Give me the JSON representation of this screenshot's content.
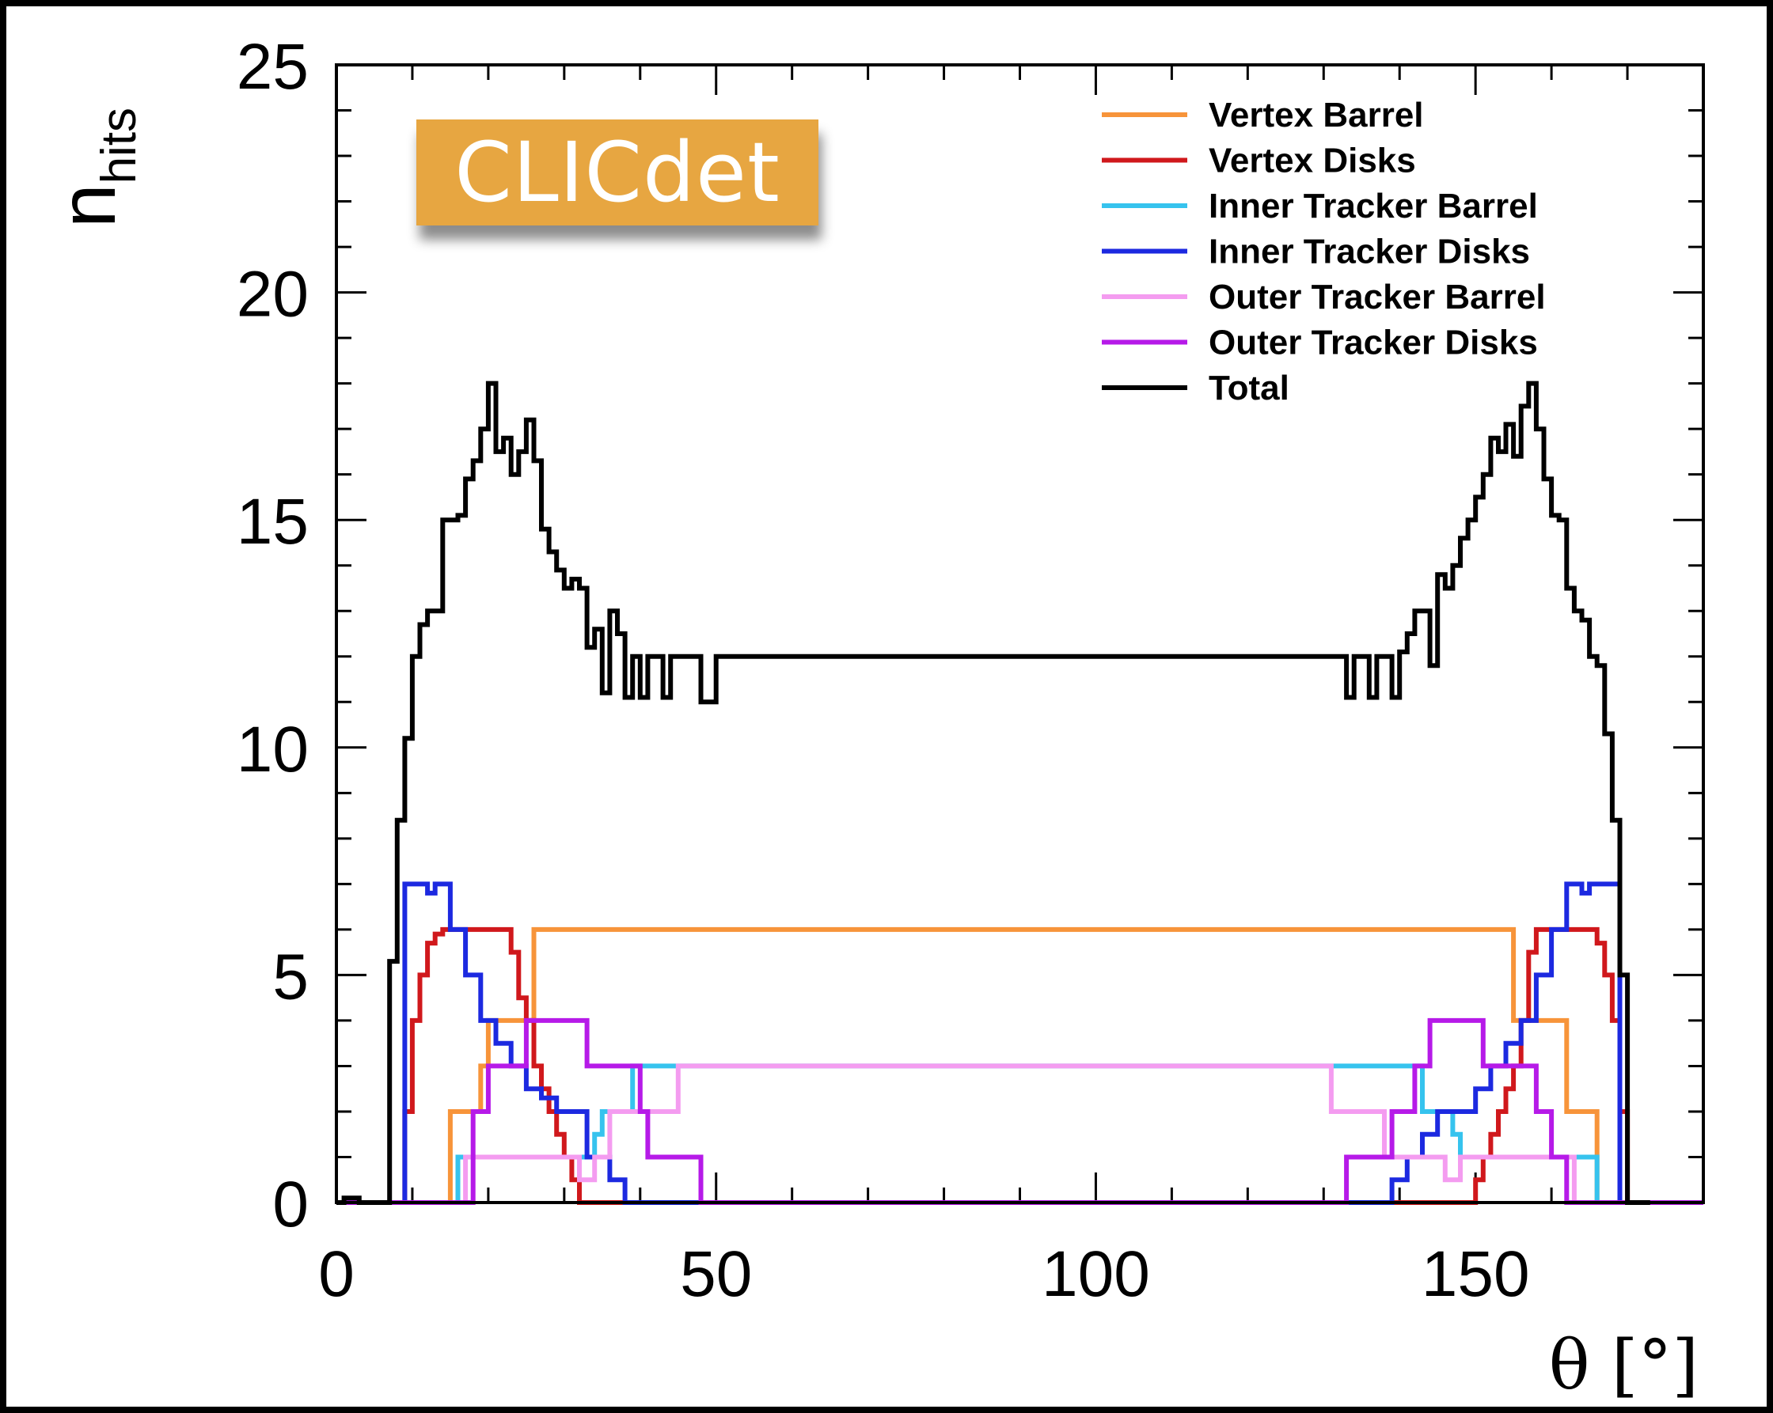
{
  "badge": "CLICdet",
  "chart_data": {
    "type": "line",
    "step": true,
    "xlabel": "θ [°]",
    "ylabel": {
      "base": "n",
      "sub": "hits"
    },
    "xlim": [
      0,
      180
    ],
    "ylim": [
      0,
      25
    ],
    "xticks": [
      0,
      50,
      100,
      150
    ],
    "yticks": [
      0,
      5,
      10,
      15,
      20,
      25
    ],
    "legend_position": "top-right",
    "series": [
      {
        "name": "Vertex Barrel",
        "color": "#f7943a",
        "points": [
          [
            0,
            0
          ],
          [
            14,
            0
          ],
          [
            15,
            2
          ],
          [
            18,
            2
          ],
          [
            19,
            3
          ],
          [
            20,
            4
          ],
          [
            25,
            4
          ],
          [
            26,
            6
          ],
          [
            154,
            6
          ],
          [
            155,
            4
          ],
          [
            161,
            4
          ],
          [
            162,
            3
          ],
          [
            162,
            2
          ],
          [
            165,
            2
          ],
          [
            166,
            0
          ],
          [
            180,
            0
          ]
        ]
      },
      {
        "name": "Vertex Disks",
        "color": "#d0181c",
        "points": [
          [
            0,
            0
          ],
          [
            8,
            0
          ],
          [
            9,
            2
          ],
          [
            10,
            4
          ],
          [
            11,
            5
          ],
          [
            12,
            5.7
          ],
          [
            13,
            5.9
          ],
          [
            14,
            6
          ],
          [
            22,
            6
          ],
          [
            23,
            5.5
          ],
          [
            24,
            4.5
          ],
          [
            25,
            4
          ],
          [
            26,
            3
          ],
          [
            27,
            2.5
          ],
          [
            28,
            2
          ],
          [
            29,
            1.5
          ],
          [
            30,
            1
          ],
          [
            31,
            0.5
          ],
          [
            32,
            0
          ],
          [
            149,
            0
          ],
          [
            150,
            0.5
          ],
          [
            151,
            1
          ],
          [
            152,
            1.5
          ],
          [
            153,
            2
          ],
          [
            154,
            2.5
          ],
          [
            155,
            3
          ],
          [
            156,
            4
          ],
          [
            157,
            5.5
          ],
          [
            158,
            6
          ],
          [
            165,
            6
          ],
          [
            166,
            5.7
          ],
          [
            167,
            5
          ],
          [
            168,
            4
          ],
          [
            169,
            2
          ],
          [
            170,
            0
          ],
          [
            180,
            0
          ]
        ]
      },
      {
        "name": "Inner Tracker Barrel",
        "color": "#36c3ee",
        "points": [
          [
            0,
            0
          ],
          [
            15,
            0
          ],
          [
            16,
            1
          ],
          [
            33,
            1
          ],
          [
            34,
            1.5
          ],
          [
            35,
            2
          ],
          [
            38,
            2
          ],
          [
            39,
            3
          ],
          [
            142,
            3
          ],
          [
            143,
            2
          ],
          [
            146,
            2
          ],
          [
            147,
            1.5
          ],
          [
            148,
            1
          ],
          [
            165,
            1
          ],
          [
            166,
            0
          ],
          [
            180,
            0
          ]
        ]
      },
      {
        "name": "Inner Tracker Disks",
        "color": "#1c29e0",
        "points": [
          [
            0,
            0
          ],
          [
            8,
            0
          ],
          [
            9,
            7
          ],
          [
            11,
            7
          ],
          [
            12,
            6.8
          ],
          [
            13,
            7
          ],
          [
            15,
            6
          ],
          [
            17,
            5
          ],
          [
            19,
            4
          ],
          [
            21,
            3.5
          ],
          [
            23,
            3
          ],
          [
            25,
            2.5
          ],
          [
            27,
            2.3
          ],
          [
            29,
            2
          ],
          [
            32,
            2
          ],
          [
            33,
            1
          ],
          [
            35,
            1
          ],
          [
            36,
            0.5
          ],
          [
            38,
            0
          ],
          [
            133,
            0
          ],
          [
            137,
            0
          ],
          [
            139,
            0.5
          ],
          [
            141,
            1
          ],
          [
            143,
            1.5
          ],
          [
            145,
            2
          ],
          [
            148,
            2
          ],
          [
            150,
            2.5
          ],
          [
            152,
            3
          ],
          [
            154,
            3.5
          ],
          [
            156,
            4
          ],
          [
            158,
            5
          ],
          [
            160,
            6
          ],
          [
            162,
            7
          ],
          [
            164,
            6.8
          ],
          [
            165,
            7
          ],
          [
            168,
            7
          ],
          [
            169,
            0
          ],
          [
            180,
            0
          ]
        ]
      },
      {
        "name": "Outer Tracker Barrel",
        "color": "#f49cf0",
        "points": [
          [
            0,
            0
          ],
          [
            16,
            0
          ],
          [
            17,
            1
          ],
          [
            30,
            1
          ],
          [
            32,
            0.5
          ],
          [
            34,
            1
          ],
          [
            36,
            2
          ],
          [
            44,
            2
          ],
          [
            45,
            3
          ],
          [
            130,
            3
          ],
          [
            131,
            2
          ],
          [
            137,
            2
          ],
          [
            138,
            1
          ],
          [
            145,
            1
          ],
          [
            146,
            0.5
          ],
          [
            148,
            1
          ],
          [
            162,
            1
          ],
          [
            163,
            0
          ],
          [
            180,
            0
          ]
        ]
      },
      {
        "name": "Outer Tracker Disks",
        "color": "#b61ae8",
        "points": [
          [
            0,
            0
          ],
          [
            17,
            0
          ],
          [
            18,
            2
          ],
          [
            20,
            3
          ],
          [
            24,
            3
          ],
          [
            25,
            4
          ],
          [
            31,
            4
          ],
          [
            33,
            3
          ],
          [
            38,
            3
          ],
          [
            40,
            2
          ],
          [
            41,
            1
          ],
          [
            47,
            1
          ],
          [
            48,
            0
          ],
          [
            132,
            0
          ],
          [
            133,
            1
          ],
          [
            138,
            1
          ],
          [
            139,
            2
          ],
          [
            142,
            3
          ],
          [
            144,
            4
          ],
          [
            150,
            4
          ],
          [
            151,
            3
          ],
          [
            157,
            3
          ],
          [
            158,
            2
          ],
          [
            160,
            1
          ],
          [
            162,
            0
          ],
          [
            180,
            0
          ]
        ]
      },
      {
        "name": "Total",
        "color": "#000000",
        "points": [
          [
            0,
            0
          ],
          [
            1,
            0.1
          ],
          [
            3,
            0
          ],
          [
            6,
            0
          ],
          [
            7,
            5.3
          ],
          [
            8,
            8.4
          ],
          [
            9,
            10.2
          ],
          [
            10,
            12
          ],
          [
            11,
            12.7
          ],
          [
            12,
            13
          ],
          [
            13,
            13
          ],
          [
            14,
            15
          ],
          [
            15,
            15
          ],
          [
            16,
            15.1
          ],
          [
            17,
            15.9
          ],
          [
            18,
            16.3
          ],
          [
            19,
            17
          ],
          [
            20,
            18
          ],
          [
            21,
            16.5
          ],
          [
            22,
            16.8
          ],
          [
            23,
            16
          ],
          [
            24,
            16.5
          ],
          [
            25,
            17.2
          ],
          [
            26,
            16.3
          ],
          [
            27,
            14.8
          ],
          [
            28,
            14.3
          ],
          [
            29,
            13.9
          ],
          [
            30,
            13.5
          ],
          [
            31,
            13.7
          ],
          [
            32,
            13.5
          ],
          [
            33,
            12.2
          ],
          [
            34,
            12.6
          ],
          [
            35,
            11.2
          ],
          [
            36,
            13
          ],
          [
            37,
            12.5
          ],
          [
            38,
            11.1
          ],
          [
            39,
            12
          ],
          [
            40,
            11.1
          ],
          [
            41,
            12
          ],
          [
            43,
            11.1
          ],
          [
            44,
            12
          ],
          [
            48,
            11
          ],
          [
            50,
            12
          ],
          [
            132,
            12
          ],
          [
            133,
            11.1
          ],
          [
            134,
            12
          ],
          [
            135,
            12
          ],
          [
            136,
            11.1
          ],
          [
            137,
            12
          ],
          [
            138,
            12
          ],
          [
            139,
            11.1
          ],
          [
            140,
            12.1
          ],
          [
            141,
            12.5
          ],
          [
            142,
            13
          ],
          [
            143,
            13
          ],
          [
            144,
            11.8
          ],
          [
            145,
            13.8
          ],
          [
            146,
            13.5
          ],
          [
            147,
            14
          ],
          [
            148,
            14.6
          ],
          [
            149,
            15
          ],
          [
            150,
            15.5
          ],
          [
            151,
            16
          ],
          [
            152,
            16.8
          ],
          [
            153,
            16.5
          ],
          [
            154,
            17.1
          ],
          [
            155,
            16.4
          ],
          [
            156,
            17.5
          ],
          [
            157,
            18
          ],
          [
            158,
            17
          ],
          [
            159,
            15.9
          ],
          [
            160,
            15.1
          ],
          [
            161,
            15
          ],
          [
            162,
            13.5
          ],
          [
            163,
            13
          ],
          [
            164,
            12.8
          ],
          [
            165,
            12
          ],
          [
            166,
            11.8
          ],
          [
            167,
            10.3
          ],
          [
            168,
            8.4
          ],
          [
            169,
            5
          ],
          [
            170,
            0
          ],
          [
            173,
            0
          ]
        ]
      }
    ]
  }
}
